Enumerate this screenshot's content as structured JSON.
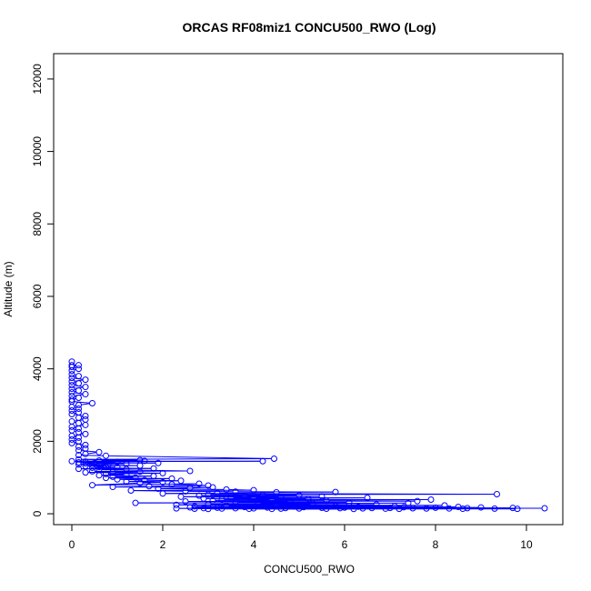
{
  "chart_data": {
    "type": "scatter",
    "title": "ORCAS RF08miz1 CONCU500_RWO (Log)",
    "xlabel": "CONCU500_RWO",
    "ylabel": "Altitude (m)",
    "xlim": [
      -0.4,
      10.8
    ],
    "ylim": [
      -300,
      12700
    ],
    "xticks": [
      0,
      2,
      4,
      6,
      8,
      10
    ],
    "yticks": [
      0,
      2000,
      4000,
      6000,
      8000,
      10000,
      12000
    ],
    "grid": false,
    "connected": true,
    "marker": "open-circle",
    "color": "#0000ff",
    "series": [
      {
        "points": [
          [
            0.0,
            4200
          ],
          [
            0.0,
            4100
          ],
          [
            0.15,
            4100
          ],
          [
            0.0,
            4050
          ],
          [
            0.15,
            4000
          ],
          [
            0.0,
            3950
          ],
          [
            0.0,
            3850
          ],
          [
            0.15,
            3800
          ],
          [
            0.0,
            3750
          ],
          [
            0.3,
            3700
          ],
          [
            0.0,
            3650
          ],
          [
            0.15,
            3600
          ],
          [
            0.0,
            3550
          ],
          [
            0.3,
            3500
          ],
          [
            0.0,
            3450
          ],
          [
            0.15,
            3400
          ],
          [
            0.0,
            3350
          ],
          [
            0.3,
            3300
          ],
          [
            0.0,
            3250
          ],
          [
            0.15,
            3200
          ],
          [
            0.0,
            3150
          ],
          [
            0.0,
            3100
          ],
          [
            0.45,
            3050
          ],
          [
            0.15,
            3000
          ],
          [
            0.0,
            2950
          ],
          [
            0.15,
            2900
          ],
          [
            0.0,
            2850
          ],
          [
            0.15,
            2800
          ],
          [
            0.0,
            2750
          ],
          [
            0.3,
            2700
          ],
          [
            0.15,
            2650
          ],
          [
            0.3,
            2600
          ],
          [
            0.0,
            2550
          ],
          [
            0.15,
            2500
          ],
          [
            0.3,
            2450
          ],
          [
            0.0,
            2400
          ],
          [
            0.15,
            2350
          ],
          [
            0.0,
            2300
          ],
          [
            0.15,
            2250
          ],
          [
            0.3,
            2200
          ],
          [
            0.0,
            2150
          ],
          [
            0.15,
            2100
          ],
          [
            0.0,
            2050
          ],
          [
            0.15,
            2000
          ],
          [
            0.0,
            1950
          ],
          [
            0.3,
            1900
          ],
          [
            0.15,
            1850
          ],
          [
            0.3,
            1800
          ],
          [
            0.15,
            1750
          ],
          [
            0.6,
            1700
          ],
          [
            0.3,
            1650
          ],
          [
            0.15,
            1620
          ],
          [
            0.75,
            1600
          ],
          [
            4.45,
            1520
          ],
          [
            0.15,
            1500
          ],
          [
            1.5,
            1480
          ],
          [
            0.6,
            1470
          ],
          [
            1.6,
            1460
          ],
          [
            0.0,
            1450
          ],
          [
            4.2,
            1450
          ],
          [
            0.3,
            1440
          ],
          [
            1.0,
            1430
          ],
          [
            0.15,
            1420
          ],
          [
            1.9,
            1400
          ],
          [
            0.5,
            1400
          ],
          [
            0.3,
            1390
          ],
          [
            1.2,
            1380
          ],
          [
            0.6,
            1370
          ],
          [
            0.15,
            1360
          ],
          [
            0.8,
            1350
          ],
          [
            0.45,
            1340
          ],
          [
            1.5,
            1330
          ],
          [
            0.3,
            1320
          ],
          [
            0.75,
            1300
          ],
          [
            0.6,
            1290
          ],
          [
            1.0,
            1280
          ],
          [
            0.45,
            1270
          ],
          [
            1.8,
            1250
          ],
          [
            0.15,
            1240
          ],
          [
            1.2,
            1230
          ],
          [
            0.6,
            1220
          ],
          [
            2.6,
            1180
          ],
          [
            0.45,
            1170
          ],
          [
            1.5,
            1160
          ],
          [
            0.9,
            1150
          ],
          [
            0.3,
            1140
          ],
          [
            2.0,
            1120
          ],
          [
            0.75,
            1100
          ],
          [
            1.2,
            1080
          ],
          [
            0.6,
            1060
          ],
          [
            1.8,
            1040
          ],
          [
            0.9,
            1020
          ],
          [
            1.4,
            1000
          ],
          [
            0.75,
            990
          ],
          [
            2.2,
            970
          ],
          [
            1.0,
            950
          ],
          [
            1.6,
            930
          ],
          [
            2.4,
            910
          ],
          [
            1.2,
            890
          ],
          [
            2.0,
            870
          ],
          [
            1.5,
            850
          ],
          [
            0.45,
            790
          ],
          [
            2.8,
            830
          ],
          [
            2.2,
            810
          ],
          [
            3.0,
            780
          ],
          [
            1.7,
            760
          ],
          [
            0.9,
            740
          ],
          [
            3.1,
            730
          ],
          [
            2.6,
            710
          ],
          [
            1.9,
            690
          ],
          [
            3.4,
            670
          ],
          [
            4.0,
            650
          ],
          [
            1.3,
            640
          ],
          [
            2.5,
            620
          ],
          [
            3.6,
            610
          ],
          [
            5.8,
            600
          ],
          [
            4.5,
            590
          ],
          [
            3.2,
            570
          ],
          [
            2.0,
            560
          ],
          [
            9.35,
            540
          ],
          [
            3.0,
            530
          ],
          [
            4.2,
            520
          ],
          [
            5.0,
            510
          ],
          [
            2.8,
            500
          ],
          [
            3.8,
            490
          ],
          [
            5.5,
            480
          ],
          [
            2.4,
            470
          ],
          [
            4.6,
            460
          ],
          [
            3.5,
            450
          ],
          [
            6.5,
            440
          ],
          [
            4.0,
            430
          ],
          [
            2.9,
            420
          ],
          [
            5.2,
            410
          ],
          [
            3.3,
            400
          ],
          [
            7.9,
            390
          ],
          [
            4.4,
            380
          ],
          [
            3.1,
            370
          ],
          [
            5.6,
            360
          ],
          [
            7.6,
            350
          ],
          [
            2.5,
            340
          ],
          [
            4.8,
            330
          ],
          [
            3.6,
            320
          ],
          [
            6.1,
            310
          ],
          [
            1.4,
            300
          ],
          [
            7.4,
            295
          ],
          [
            4.1,
            285
          ],
          [
            5.3,
            275
          ],
          [
            3.0,
            265
          ],
          [
            6.7,
            255
          ],
          [
            2.3,
            245
          ],
          [
            4.5,
            240
          ],
          [
            8.2,
            230
          ],
          [
            3.4,
            220
          ],
          [
            5.8,
            215
          ],
          [
            7.1,
            210
          ],
          [
            2.7,
            205
          ],
          [
            4.9,
            200
          ],
          [
            6.3,
            195
          ],
          [
            8.5,
            190
          ],
          [
            3.8,
            185
          ],
          [
            5.1,
            182
          ],
          [
            7.3,
            180
          ],
          [
            2.6,
            177
          ],
          [
            9.0,
            175
          ],
          [
            4.3,
            172
          ],
          [
            6.0,
            170
          ],
          [
            8.0,
            168
          ],
          [
            3.2,
            166
          ],
          [
            5.5,
            164
          ],
          [
            7.0,
            162
          ],
          [
            9.7,
            160
          ],
          [
            4.7,
            158
          ],
          [
            6.6,
            157
          ],
          [
            2.9,
            156
          ],
          [
            8.7,
            155
          ],
          [
            5.9,
            154
          ],
          [
            3.6,
            153
          ],
          [
            7.5,
            152
          ],
          [
            10.4,
            151
          ],
          [
            4.0,
            150
          ],
          [
            6.4,
            149
          ],
          [
            2.3,
            148
          ],
          [
            8.3,
            147
          ],
          [
            5.0,
            146
          ],
          [
            7.8,
            145
          ],
          [
            3.3,
            144
          ],
          [
            9.3,
            143
          ],
          [
            4.6,
            142
          ],
          [
            6.9,
            141
          ],
          [
            2.7,
            140
          ],
          [
            5.6,
            139
          ],
          [
            8.6,
            138
          ],
          [
            3.9,
            137
          ],
          [
            7.2,
            136
          ],
          [
            9.8,
            135
          ],
          [
            4.4,
            134
          ],
          [
            6.2,
            133
          ],
          [
            3.0,
            132
          ]
        ]
      }
    ]
  }
}
